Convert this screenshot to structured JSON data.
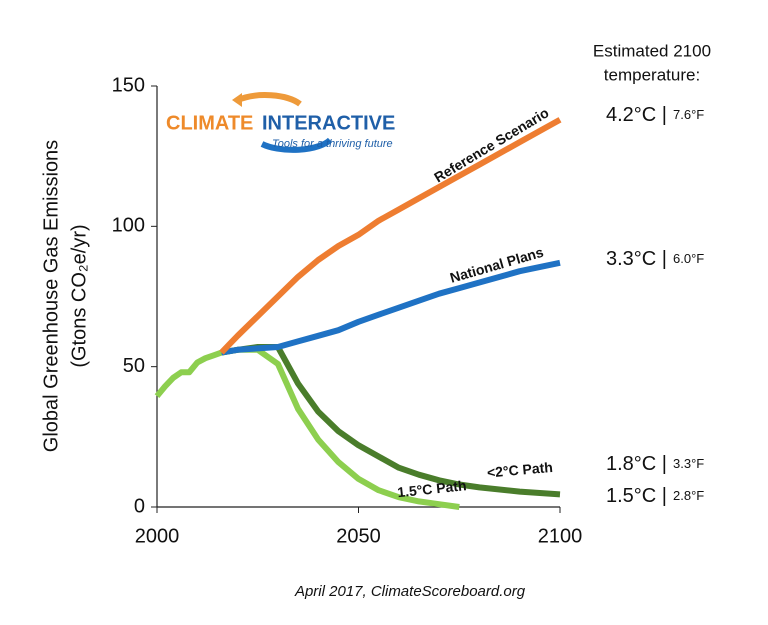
{
  "chart_data": {
    "type": "line",
    "ylabel": [
      "Global Greenhouse Gas Emissions",
      "(Gtons CO₂e/yr)"
    ],
    "x": [
      2000,
      2002,
      2004,
      2006,
      2008,
      2010,
      2012,
      2014,
      2016,
      2018,
      2020,
      2025,
      2030,
      2035,
      2040,
      2045,
      2050,
      2055,
      2060,
      2065,
      2070,
      2075,
      2080,
      2090,
      2100
    ],
    "series": [
      {
        "name": "1.5°C Path",
        "color": "#8dcf4f",
        "values": [
          39.5,
          43,
          46,
          48,
          48,
          51.5,
          53,
          54,
          55,
          55.5,
          56,
          56,
          51,
          35,
          24,
          16,
          10,
          6,
          3.5,
          2,
          1,
          0,
          null,
          null,
          null
        ]
      },
      {
        "name": "<2°C Path",
        "color": "#4a7d2b",
        "values": [
          null,
          null,
          null,
          null,
          null,
          null,
          null,
          null,
          55,
          55.5,
          56,
          57,
          57,
          44,
          34,
          27,
          22,
          18,
          14,
          11.5,
          9.5,
          8,
          7,
          5.5,
          4.5
        ]
      },
      {
        "name": "National Plans",
        "color": "#1f72c4",
        "values": [
          null,
          null,
          null,
          null,
          null,
          null,
          null,
          null,
          55,
          55.5,
          56,
          56.5,
          57,
          59,
          61,
          63,
          66,
          68.5,
          71,
          73.5,
          76,
          78,
          80,
          84,
          87
        ]
      },
      {
        "name": "Reference Scenario",
        "color": "#ee7d31",
        "values": [
          null,
          null,
          null,
          null,
          null,
          null,
          null,
          null,
          55,
          58,
          61,
          68,
          75,
          82,
          88,
          93,
          97,
          102,
          106,
          110,
          114,
          118,
          122,
          130,
          138
        ]
      }
    ],
    "xlim": [
      2000,
      2100
    ],
    "xticks": [
      2000,
      2050,
      2100
    ],
    "ylim": [
      0,
      150
    ],
    "yticks": [
      0,
      50,
      100,
      150
    ],
    "temperature_heading": [
      "Estimated 2100",
      "temperature:"
    ],
    "temperatures": [
      {
        "celsius": "4.2°C |",
        "fahrenheit": "7.6°F"
      },
      {
        "celsius": "3.3°C |",
        "fahrenheit": "6.0°F"
      },
      {
        "celsius": "1.8°C |",
        "fahrenheit": "3.3°F"
      },
      {
        "celsius": "1.5°C |",
        "fahrenheit": "2.8°F"
      }
    ],
    "logo": {
      "first": "CLIMATE",
      "second": "INTERACTIVE",
      "tagline": "Tools for a thriving future"
    },
    "source": "April 2017, ClimateScoreboard.org"
  }
}
